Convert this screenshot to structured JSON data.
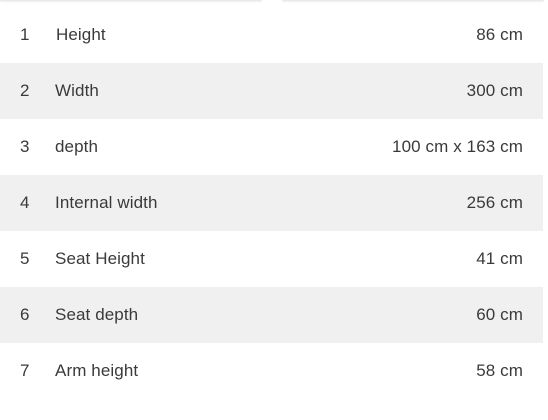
{
  "specs": [
    {
      "index": "1",
      "label": "Height",
      "value": "86 cm"
    },
    {
      "index": "2",
      "label": "Width",
      "value": "300 cm"
    },
    {
      "index": "3",
      "label": "depth",
      "value": "100 cm x 163 cm"
    },
    {
      "index": "4",
      "label": "Internal width",
      "value": "256 cm"
    },
    {
      "index": "5",
      "label": "Seat Height",
      "value": "41 cm"
    },
    {
      "index": "6",
      "label": "Seat depth",
      "value": "60 cm"
    },
    {
      "index": "7",
      "label": "Arm height",
      "value": "58 cm"
    }
  ],
  "colors": {
    "text": "#3a3a3a",
    "row_alt": "#f0f0f0",
    "background": "#ffffff"
  }
}
